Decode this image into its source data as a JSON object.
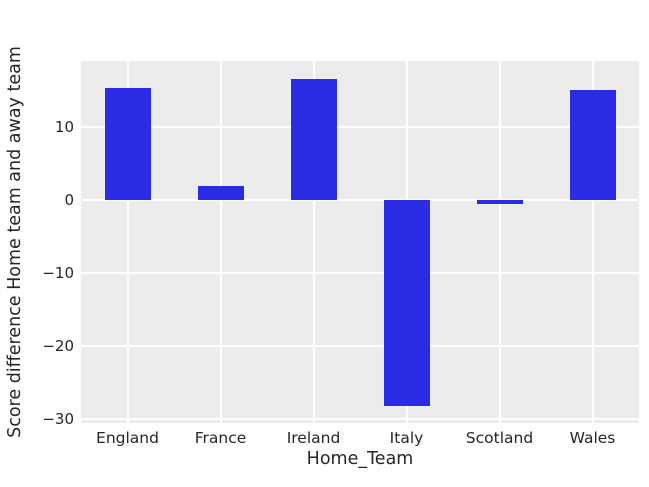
{
  "chart_data": {
    "type": "bar",
    "title": "",
    "xlabel": "Home_Team",
    "ylabel": "Score difference Home team and away team",
    "categories": [
      "England",
      "France",
      "Ireland",
      "Italy",
      "Scotland",
      "Wales"
    ],
    "values": [
      15.4,
      2.0,
      16.7,
      -28.2,
      -0.5,
      15.1
    ],
    "yticks": [
      10,
      0,
      -10,
      -20,
      -30
    ],
    "ylim": [
      -30.5,
      19.1
    ],
    "grid": true,
    "legend": "none",
    "colors": {
      "bar": "#2b2de4",
      "plot_background": "#ececec",
      "gridline": "#ffffff",
      "text": "#262626",
      "figure_background": "#ffffff"
    }
  }
}
